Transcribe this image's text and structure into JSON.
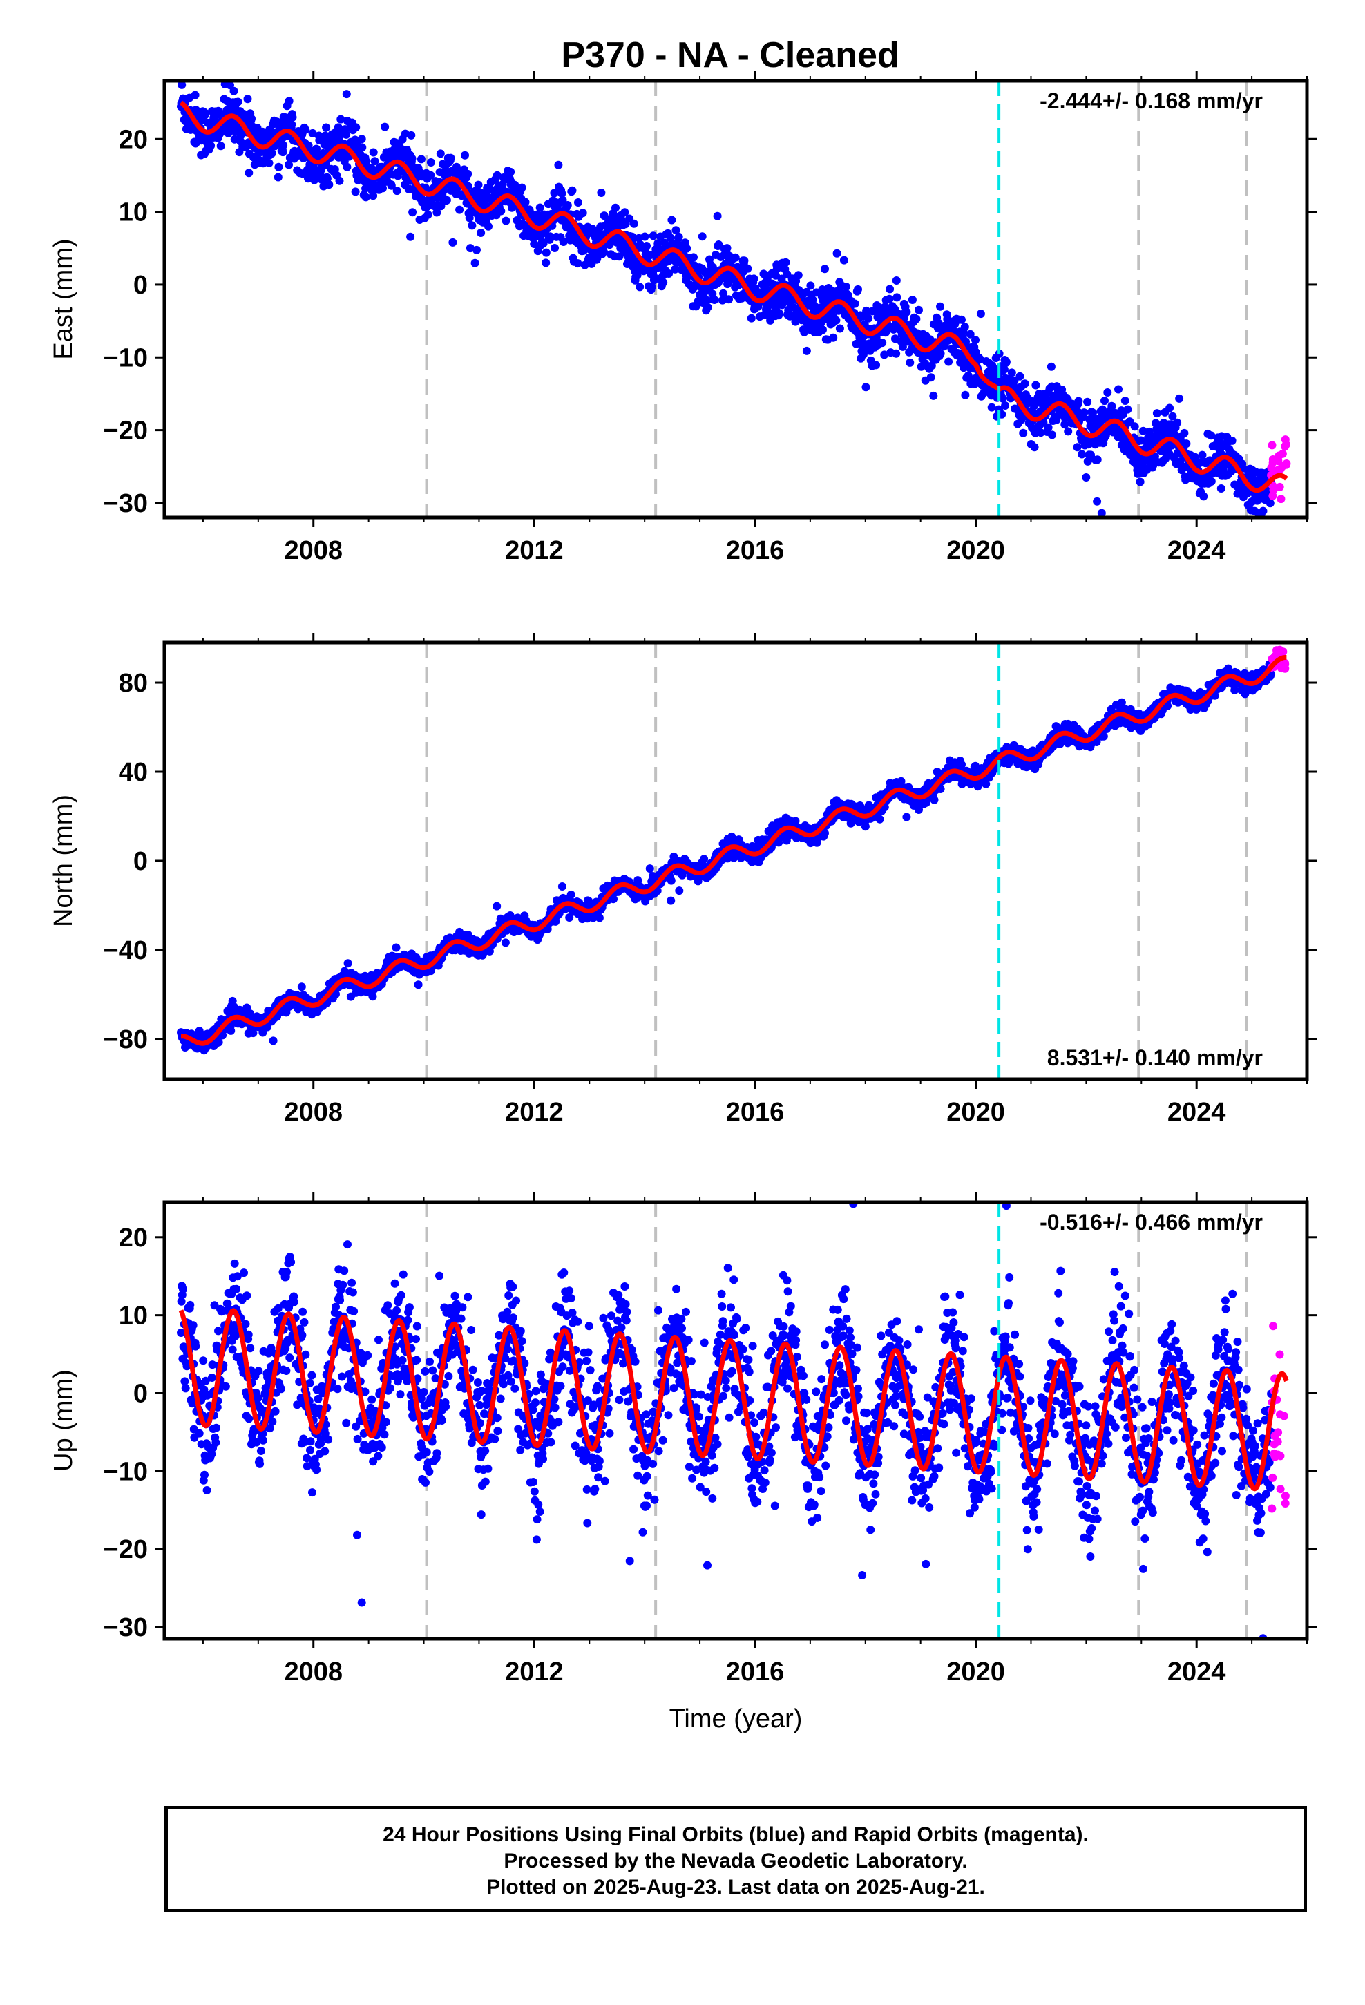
{
  "title": "P370  - NA - Cleaned",
  "colors": {
    "final_orbits": "#0000ff",
    "rapid_orbits": "#ff00ff",
    "model_fit": "#ff0000",
    "event_line": "#00e5e5",
    "equipment_line": "#c0c0c0"
  },
  "chart_data": [
    {
      "type": "scatter",
      "name": "east",
      "ylabel": "East (mm)",
      "xlabel": "",
      "rate_label": "-2.444+/- 0.168 mm/yr",
      "rate_position": "top-right",
      "xlim": [
        2005.3,
        2026.0
      ],
      "ylim": [
        -32,
        28
      ],
      "x_ticks": [
        "2008",
        "2012",
        "2016",
        "2020",
        "2024"
      ],
      "y_ticks": [
        "20",
        "10",
        "0",
        "−10",
        "−20",
        "−30"
      ],
      "y_tick_values": [
        20,
        10,
        0,
        -10,
        -20,
        -30
      ],
      "grid": false,
      "event_lines": [
        2020.42
      ],
      "equipment_lines": [
        2010.05,
        2014.2,
        2022.95,
        2024.9
      ],
      "trend": {
        "knots_x": [
          2005.6,
          2009.0,
          2012.0,
          2016.0,
          2020.0,
          2020.42,
          2022.0,
          2025.6
        ],
        "knots_y": [
          23.5,
          16.5,
          9.5,
          -0.5,
          -9.5,
          -15.5,
          -19.0,
          -28.0
        ]
      },
      "seasonal_amplitude_mm": 1.6,
      "scatter_mm": 1.8,
      "rapid_x_range": [
        2025.35,
        2025.63
      ],
      "rapid_y": [
        -21.0,
        -30.0
      ]
    },
    {
      "type": "scatter",
      "name": "north",
      "ylabel": "North (mm)",
      "xlabel": "",
      "rate_label": "8.531+/- 0.140 mm/yr",
      "rate_position": "bottom-right",
      "xlim": [
        2005.3,
        2026.0
      ],
      "ylim": [
        -98,
        98
      ],
      "x_ticks": [
        "2008",
        "2012",
        "2016",
        "2020",
        "2024"
      ],
      "y_ticks": [
        "80",
        "40",
        "0",
        "−40",
        "−80"
      ],
      "y_tick_values": [
        80,
        40,
        0,
        -40,
        -80
      ],
      "grid": false,
      "event_lines": [
        2020.42
      ],
      "equipment_lines": [
        2010.05,
        2014.2,
        2022.95,
        2024.9
      ],
      "trend": {
        "knots_x": [
          2005.6,
          2025.6
        ],
        "knots_y": [
          -82.0,
          88.0
        ]
      },
      "seasonal_amplitude_mm": 3.5,
      "scatter_mm": 2.0,
      "rapid_x_range": [
        2025.35,
        2025.63
      ],
      "rapid_y": [
        86.0,
        95.0
      ]
    },
    {
      "type": "scatter",
      "name": "up",
      "ylabel": "Up (mm)",
      "xlabel": "Time (year)",
      "rate_label": "-0.516+/- 0.466 mm/yr",
      "rate_position": "top-right",
      "xlim": [
        2005.3,
        2026.0
      ],
      "ylim": [
        -31.5,
        24.5
      ],
      "x_ticks": [
        "2008",
        "2012",
        "2016",
        "2020",
        "2024"
      ],
      "y_ticks": [
        "20",
        "10",
        "0",
        "−10",
        "−20",
        "−30"
      ],
      "y_tick_values": [
        20,
        10,
        0,
        -10,
        -20,
        -30
      ],
      "grid": false,
      "event_lines": [
        2020.42
      ],
      "equipment_lines": [
        2010.05,
        2014.2,
        2022.95,
        2024.9
      ],
      "trend": {
        "knots_x": [
          2005.6,
          2025.6
        ],
        "knots_y": [
          3.5,
          -5.0
        ]
      },
      "seasonal_amplitude_mm": 7.5,
      "scatter_mm": 4.0,
      "rapid_x_range": [
        2025.35,
        2025.63
      ],
      "rapid_y": [
        10.5,
        -15.0
      ]
    }
  ],
  "footer": {
    "line1": "24 Hour Positions Using Final Orbits (blue) and Rapid Orbits (magenta).",
    "line2": "Processed by the Nevada Geodetic Laboratory.",
    "line3": "Plotted on 2025-Aug-23. Last data on 2025-Aug-21."
  }
}
